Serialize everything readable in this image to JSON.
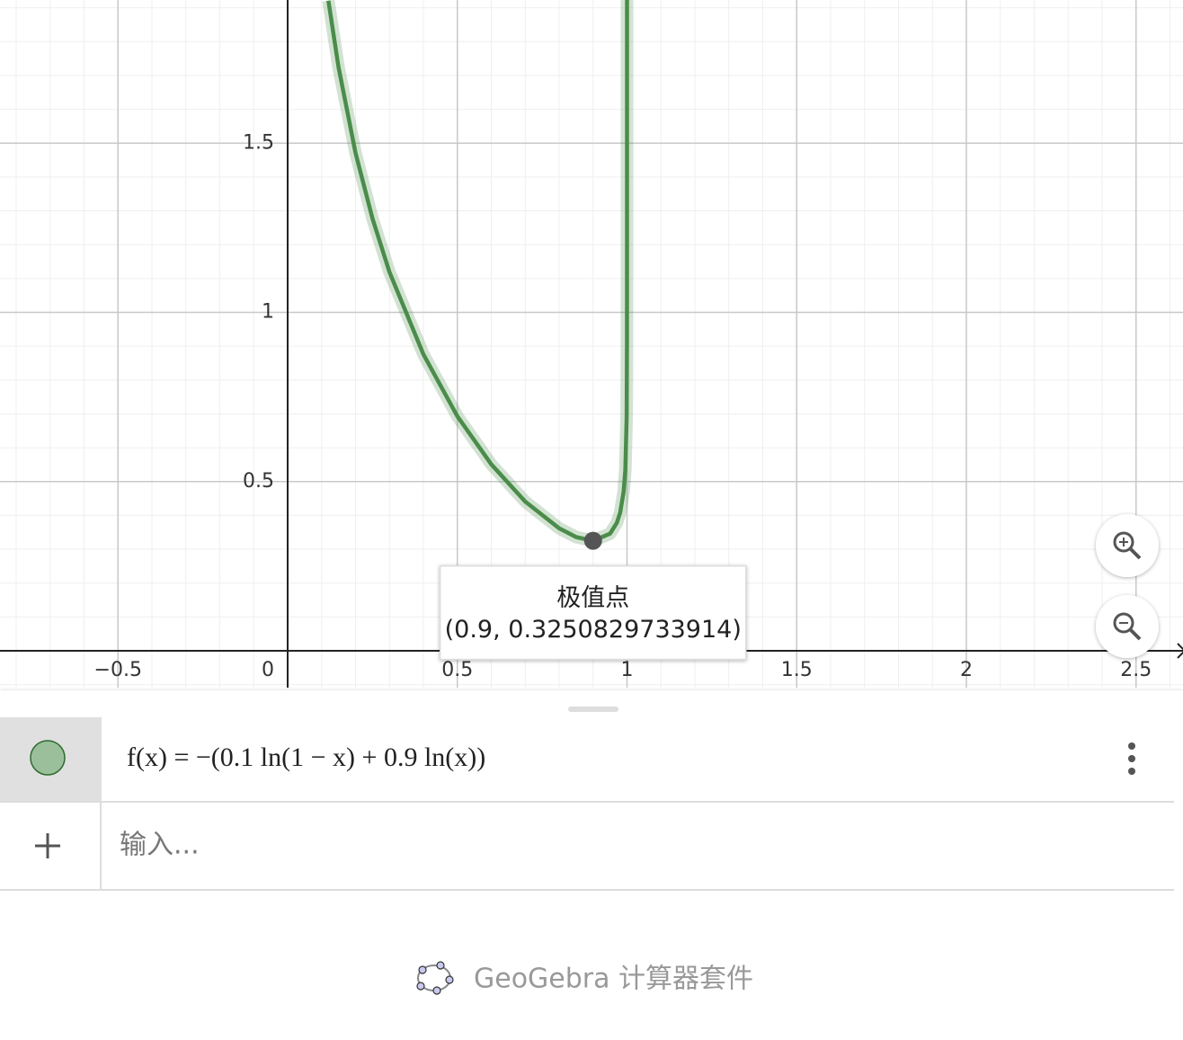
{
  "chart_data": {
    "type": "line",
    "x": [
      0.12,
      0.15,
      0.2,
      0.25,
      0.3,
      0.4,
      0.5,
      0.6,
      0.7,
      0.8,
      0.85,
      0.9,
      0.95,
      0.97,
      0.98,
      0.99,
      0.995,
      0.999,
      0.9999,
      0.99999,
      0.999999,
      0.9999999,
      0.99999999,
      0.999999999
    ],
    "values": [
      1.921,
      1.724,
      1.471,
      1.277,
      1.119,
      0.876,
      0.693,
      0.551,
      0.441,
      0.362,
      0.336,
      0.325,
      0.346,
      0.378,
      0.409,
      0.47,
      0.534,
      0.692,
      0.921,
      1.151,
      1.382,
      1.612,
      1.842,
      2.072
    ],
    "color": "#4a8c4a",
    "xlim": [
      -0.8477,
      2.6384
    ],
    "ylim": [
      -0.1089,
      1.923
    ],
    "xticks": [
      {
        "value": -0.5,
        "label": "−0.5"
      },
      0,
      0.5,
      1,
      1.5,
      2,
      2.5
    ],
    "yticks": [
      0.5,
      1,
      1.5
    ],
    "grid": true,
    "point": {
      "x": 0.9,
      "y": 0.3250829733914,
      "label": "极值点",
      "value_label": "(0.9, 0.3250829733914)"
    }
  },
  "algebra": {
    "formula": "f(x) = −(0.1 ln(1 − x) + 0.9 ln(x))",
    "input_placeholder": "输入...",
    "footer": "GeoGebra 计算器套件"
  }
}
